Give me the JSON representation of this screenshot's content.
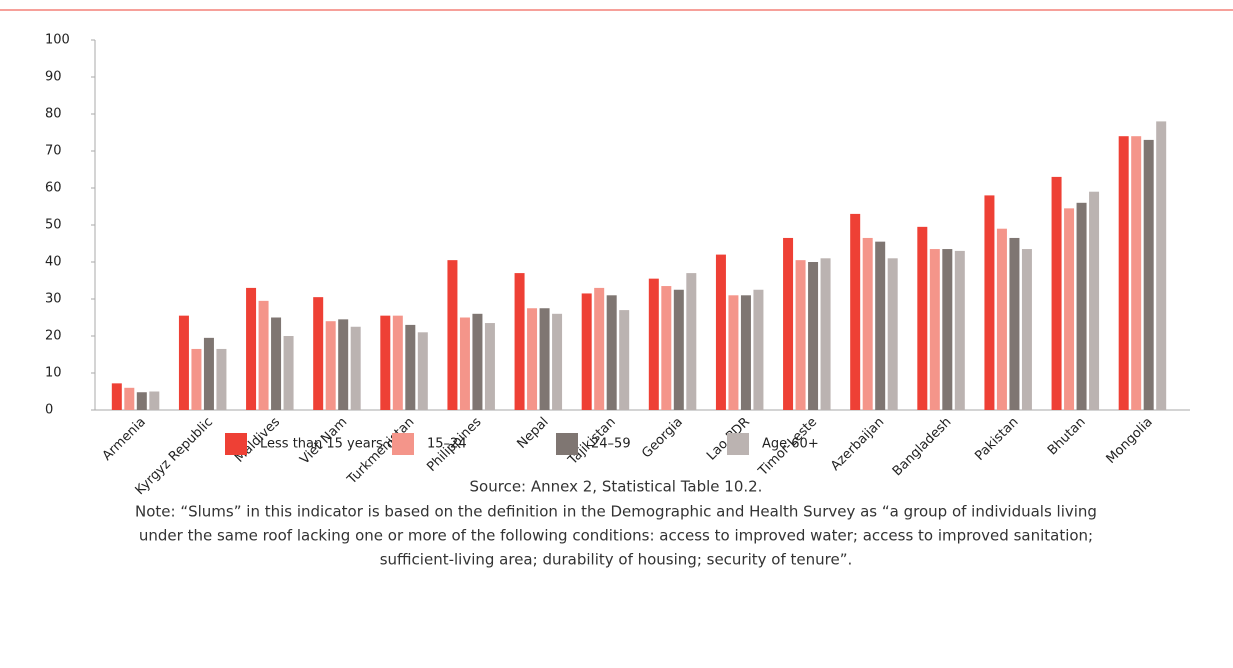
{
  "chart_data": {
    "type": "bar",
    "categories": [
      "Armenia",
      "Kyrgyz Republic",
      "Maldives",
      "Viet Nam",
      "Turkmenistan",
      "Philippines",
      "Nepal",
      "Tajikistan",
      "Georgia",
      "Lao PDR",
      "Timor-Leste",
      "Azerbaijan",
      "Bangladesh",
      "Pakistan",
      "Bhutan",
      "Mongolia"
    ],
    "series": [
      {
        "name": "Less than 15 years old",
        "color": "#ee4035",
        "values": [
          7.2,
          25.5,
          33,
          30.5,
          25.5,
          40.5,
          37,
          31.5,
          35.5,
          42,
          46.5,
          53,
          49.5,
          58,
          63,
          74
        ]
      },
      {
        "name": "15–24",
        "color": "#f4958a",
        "values": [
          6,
          16.5,
          29.5,
          24,
          25.5,
          25,
          27.5,
          33,
          33.5,
          31,
          40.5,
          46.5,
          43.5,
          49,
          54.5,
          74
        ]
      },
      {
        "name": "24–59",
        "color": "#7f7672",
        "values": [
          4.8,
          19.5,
          25,
          24.5,
          23,
          26,
          27.5,
          31,
          32.5,
          31,
          40,
          45.5,
          43.5,
          46.5,
          56,
          73
        ]
      },
      {
        "name": "Age 60+",
        "color": "#bbb3b1",
        "values": [
          5,
          16.5,
          20,
          22.5,
          21,
          23.5,
          26,
          27,
          37,
          32.5,
          41,
          41,
          43,
          43.5,
          59,
          78
        ]
      }
    ],
    "ylim": [
      0,
      100
    ],
    "yticks": [
      0,
      10,
      20,
      30,
      40,
      50,
      60,
      70,
      80,
      90,
      100
    ],
    "source": "Source: Annex 2, Statistical Table 10.2.",
    "note": [
      "Note: “Slums” in this indicator is based on the definition in the Demographic and Health Survey as “a group of individuals living",
      "under the same roof lacking one or more of the following conditions: access to improved water; access to improved sanitation;",
      "sufficient-living area; durability of housing; security of tenure”."
    ]
  }
}
